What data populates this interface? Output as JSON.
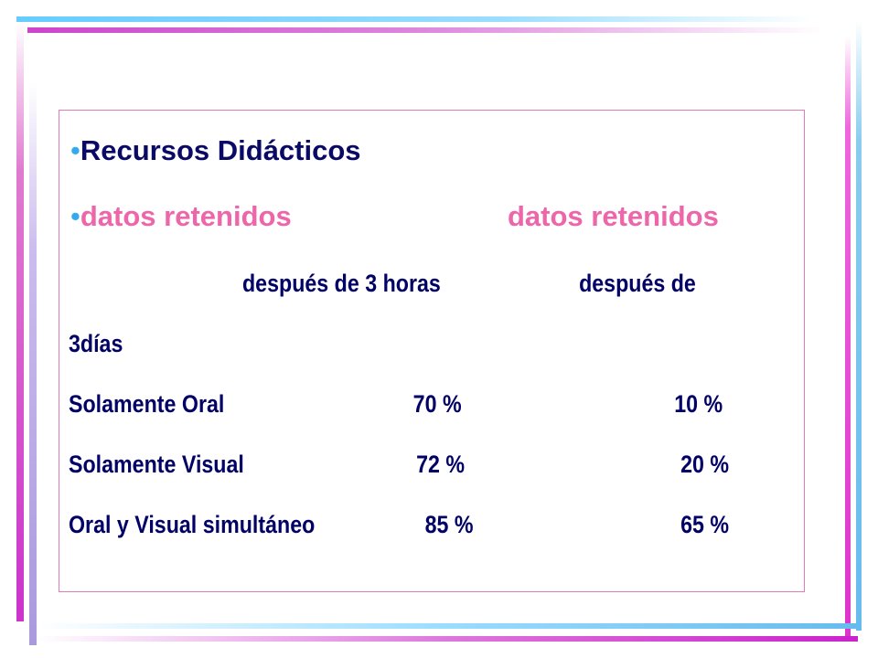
{
  "slide": {
    "title": "Recursos Didácticos",
    "bullet_char": "•",
    "subheading_1": "datos retenidos",
    "subheading_2": "datos retenidos",
    "column_header_1": "después de 3 horas",
    "column_header_2": "después de",
    "column_header_2_cont": "3días",
    "rows": [
      {
        "label": "Solamente Oral",
        "after_3_hours": "70 %",
        "after_3_days": "10 %"
      },
      {
        "label": "Solamente Visual",
        "after_3_hours": "72 %",
        "after_3_days": "20 %"
      },
      {
        "label": "Oral y Visual simultáneo",
        "after_3_hours": "85 %",
        "after_3_days": "65 %"
      }
    ]
  },
  "colors": {
    "title": "#0a0a66",
    "subheading": "#ee66aa",
    "bullet": "#33aaee",
    "table_text": "#000066",
    "frame_cyan": "#66ccff",
    "frame_pink": "#cc33cc"
  }
}
